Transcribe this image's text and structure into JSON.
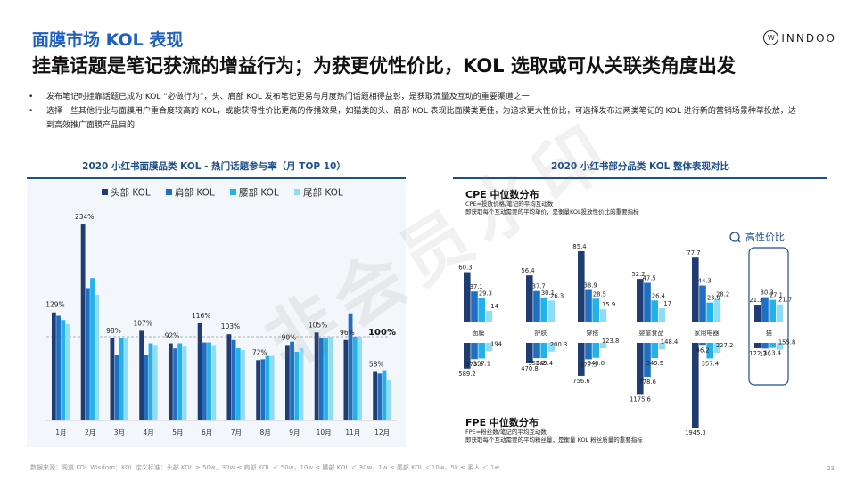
{
  "header": {
    "title": "面膜市场 KOL 表现",
    "headline": "挂靠话题是笔记获流的增益行为；为获更优性价比，KOL 选取或可从关联类角度出发",
    "logo_mark": "W",
    "logo_text": "INNDOO"
  },
  "bullets": [
    "发布笔记时挂靠话题已成为 KOL “必做行为”，头、肩部 KOL 发布笔记更易与月度热门话题相得益彰，是获取流量及互动的重要渠道之一",
    "选择一些其他行业与面膜用户重合度较高的 KOL，或能获得性价比更高的传播效果，如猫类的头、肩部 KOL 表现比面膜类更佳，为追求更大性价比，可选择发布过两类笔记的 KOL 进行新的营销场景种草投放，达到高效推广面膜产品目的"
  ],
  "watermark": "非会员水印",
  "colors": {
    "head": "#1f3d73",
    "shoulder": "#1f6fc2",
    "waist": "#22b1e8",
    "tail": "#8fdcf5",
    "accent": "#1f5fbf"
  },
  "chart_data": [
    {
      "type": "bar",
      "title": "2020 小红书面膜品类 KOL - 热门话题参与率（月 TOP 10）",
      "categories": [
        "1月",
        "2月",
        "3月",
        "4月",
        "5月",
        "6月",
        "7月",
        "8月",
        "9月",
        "10月",
        "11月",
        "12月"
      ],
      "top_labels": [
        "129%",
        "234%",
        "98%",
        "107%",
        "92%",
        "116%",
        "103%",
        "72%",
        "90%",
        "105%",
        "96%",
        "58%"
      ],
      "series": [
        {
          "name": "头部 KOL",
          "values": [
            129,
            234,
            98,
            107,
            92,
            116,
            103,
            72,
            90,
            105,
            96,
            58
          ]
        },
        {
          "name": "肩部 KOL",
          "values": [
            125,
            158,
            78,
            78,
            86,
            93,
            96,
            73,
            94,
            98,
            128,
            56
          ]
        },
        {
          "name": "腰部 KOL",
          "values": [
            120,
            170,
            98,
            92,
            92,
            93,
            86,
            77,
            82,
            98,
            100,
            60
          ]
        },
        {
          "name": "尾部 KOL",
          "values": [
            115,
            150,
            98,
            90,
            88,
            90,
            84,
            77,
            86,
            100,
            100,
            48
          ]
        }
      ],
      "reference_line": {
        "value": 100,
        "label": "100%"
      },
      "ylim": [
        0,
        250
      ]
    },
    {
      "type": "bar",
      "title": "2020 小红书部分品类 KOL 整体表现对比",
      "categories": [
        "面膜",
        "护肤",
        "穿搭",
        "婴童食品",
        "家用电器",
        "猫"
      ],
      "series_names": [
        "头部 KOL",
        "肩部 KOL",
        "腰部 KOL",
        "尾部 KOL"
      ],
      "cpe": {
        "heading": "CPE 中位数分布",
        "def1": "CPE=投放价格/笔记的平均互动数",
        "def2": "即获取每个互动需要的平均单价，是衡量KOL投放性价比的重要指标",
        "values": [
          [
            60.3,
            37.1,
            29.3,
            14
          ],
          [
            56.4,
            37.7,
            30.1,
            26.3
          ],
          [
            85.4,
            38.9,
            28.5,
            15.9
          ],
          [
            52.2,
            47.5,
            26.4,
            17
          ],
          [
            77.7,
            44.3,
            23.9,
            28.2
          ],
          [
            21.3,
            30.3,
            27.1,
            21.7
          ]
        ]
      },
      "fpe": {
        "heading": "FPE 中位数分布",
        "def1": "FPE=粉丝数/笔记的平均互动数",
        "def2": "即获取每个互动需要的平均粉丝量，是衡量 KOL 粉丝质量的重要指标",
        "values": [
          [
            589.2,
            373.5,
            357.1,
            194
          ],
          [
            470.8,
            350.2,
            349.4,
            200.3
          ],
          [
            756.6,
            377.5,
            343.8,
            123.8
          ],
          [
            1175.6,
            778.6,
            349.5,
            148.4
          ],
          [
            1945.3,
            46.2,
            357.4,
            227.2
          ],
          [
            122.2,
            130,
            113.4,
            155.8
          ]
        ]
      },
      "highlight": {
        "category": "猫",
        "label": "高性价比"
      }
    }
  ],
  "footnote": "数据来源：阁道 KOL Wisdom；KOL 定义标准：头部 KOL ≥ 50w，30w ≤ 肩部 KOL ＜ 50w，10w ≤ 腰部 KOL ＜ 30w，1w ≤ 尾部 KOL ＜10w，5k ≤ 素人 ＜ 1w",
  "page_number": "23"
}
